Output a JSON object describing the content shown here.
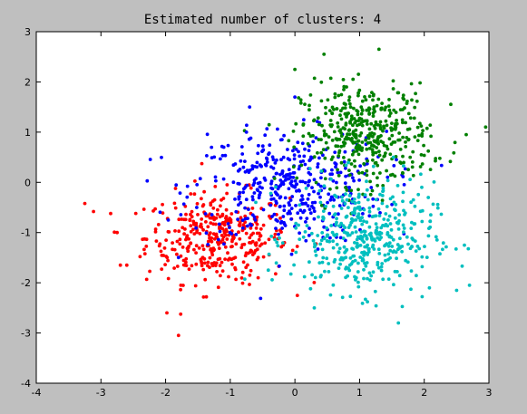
{
  "chart_data": {
    "type": "scatter",
    "title": "Estimated number of clusters: 4",
    "xlabel": "",
    "ylabel": "",
    "xlim": [
      -4,
      3
    ],
    "ylim": [
      -4,
      3
    ],
    "xticks": [
      "-4",
      "-3",
      "-2",
      "-1",
      "0",
      "1",
      "2",
      "3"
    ],
    "yticks": [
      "-4",
      "-3",
      "-2",
      "-1",
      "0",
      "1",
      "2",
      "3"
    ],
    "grid": false,
    "clusters": [
      {
        "color": "#ff0000",
        "center": [
          -1.2,
          -1.1
        ],
        "spread": [
          0.55,
          0.45
        ],
        "count": 380
      },
      {
        "color": "#0000ff",
        "center": [
          -0.1,
          -0.1
        ],
        "spread": [
          0.75,
          0.55
        ],
        "count": 420
      },
      {
        "color": "#008000",
        "center": [
          1.1,
          0.95
        ],
        "spread": [
          0.5,
          0.5
        ],
        "count": 420
      },
      {
        "color": "#00bfbf",
        "center": [
          1.05,
          -1.1
        ],
        "spread": [
          0.55,
          0.55
        ],
        "count": 420
      }
    ],
    "outliers": [
      {
        "color": "#ff0000",
        "x": -3.25,
        "y": -0.42
      },
      {
        "color": "#ff0000",
        "x": -2.85,
        "y": -0.62
      },
      {
        "color": "#ff0000",
        "x": -2.75,
        "y": -1.0
      },
      {
        "color": "#ff0000",
        "x": -2.7,
        "y": -1.65
      },
      {
        "color": "#ff0000",
        "x": -2.6,
        "y": -1.65
      },
      {
        "color": "#ff0000",
        "x": -1.8,
        "y": -3.05
      },
      {
        "color": "#ff0000",
        "x": -1.98,
        "y": -2.6
      },
      {
        "color": "#0000ff",
        "x": -0.75,
        "y": 1.0
      },
      {
        "color": "#0000ff",
        "x": -0.7,
        "y": 1.5
      },
      {
        "color": "#0000ff",
        "x": 0.0,
        "y": 1.7
      },
      {
        "color": "#008000",
        "x": 0.0,
        "y": 2.25
      },
      {
        "color": "#008000",
        "x": 0.45,
        "y": 2.55
      },
      {
        "color": "#008000",
        "x": 1.3,
        "y": 2.65
      },
      {
        "color": "#008000",
        "x": 2.95,
        "y": 1.1
      },
      {
        "color": "#008000",
        "x": 2.65,
        "y": 0.95
      },
      {
        "color": "#00bfbf",
        "x": 2.7,
        "y": -2.05
      },
      {
        "color": "#00bfbf",
        "x": 2.5,
        "y": -2.15
      },
      {
        "color": "#00bfbf",
        "x": 1.6,
        "y": -2.8
      },
      {
        "color": "#00bfbf",
        "x": 0.3,
        "y": -2.5
      }
    ]
  }
}
